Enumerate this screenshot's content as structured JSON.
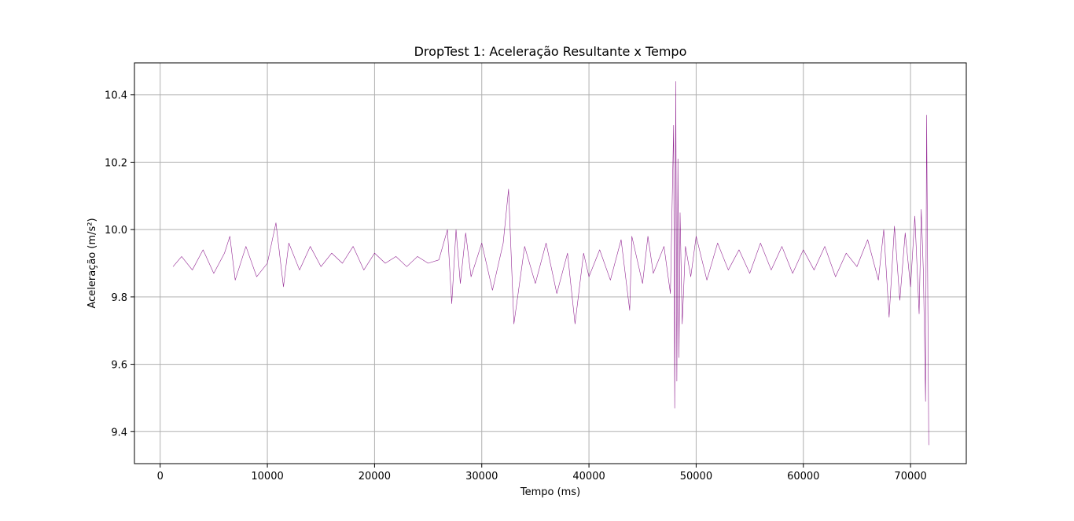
{
  "chart_data": {
    "type": "line",
    "title": "DropTest 1: Aceleração Resultante x Tempo",
    "xlabel": "Tempo (ms)",
    "ylabel": "Aceleração (m/s²)",
    "xlim": [
      -2400,
      75200
    ],
    "ylim": [
      9.305,
      10.495
    ],
    "x_ticks": [
      0,
      10000,
      20000,
      30000,
      40000,
      50000,
      60000,
      70000
    ],
    "x_tick_labels": [
      "0",
      "10000",
      "20000",
      "30000",
      "40000",
      "50000",
      "60000",
      "70000"
    ],
    "y_ticks": [
      9.4,
      9.6,
      9.8,
      10.0,
      10.2,
      10.4
    ],
    "y_tick_labels": [
      "9.4",
      "9.6",
      "9.8",
      "10.0",
      "10.2",
      "10.4"
    ],
    "grid": true,
    "legend": "none",
    "series": [
      {
        "color": "#800080",
        "x": [
          1200,
          2000,
          3000,
          4000,
          5000,
          6000,
          6500,
          7000,
          8000,
          9000,
          10000,
          10800,
          11500,
          12000,
          13000,
          14000,
          15000,
          16000,
          17000,
          18000,
          19000,
          20000,
          21000,
          22000,
          23000,
          24000,
          25000,
          26000,
          26800,
          27200,
          27600,
          28000,
          28500,
          29000,
          30000,
          31000,
          32000,
          32500,
          33000,
          34000,
          35000,
          36000,
          37000,
          38000,
          38700,
          39500,
          40000,
          41000,
          42000,
          43000,
          43800,
          44000,
          45000,
          45500,
          46000,
          47000,
          47600,
          47900,
          48000,
          48100,
          48200,
          48300,
          48400,
          48500,
          48700,
          49000,
          49500,
          50000,
          51000,
          52000,
          53000,
          54000,
          55000,
          56000,
          57000,
          58000,
          59000,
          60000,
          61000,
          62000,
          63000,
          64000,
          65000,
          66000,
          67000,
          67500,
          68000,
          68500,
          69000,
          69500,
          70000,
          70400,
          70800,
          71000,
          71200,
          71400,
          71500,
          71700
        ],
        "values": [
          9.89,
          9.92,
          9.88,
          9.94,
          9.87,
          9.93,
          9.98,
          9.85,
          9.95,
          9.86,
          9.9,
          10.02,
          9.83,
          9.96,
          9.88,
          9.95,
          9.89,
          9.93,
          9.9,
          9.95,
          9.88,
          9.93,
          9.9,
          9.92,
          9.89,
          9.92,
          9.9,
          9.91,
          10.0,
          9.78,
          10.0,
          9.84,
          9.99,
          9.86,
          9.96,
          9.82,
          9.96,
          10.12,
          9.72,
          9.95,
          9.84,
          9.96,
          9.81,
          9.93,
          9.72,
          9.93,
          9.86,
          9.94,
          9.85,
          9.97,
          9.76,
          9.98,
          9.84,
          9.98,
          9.87,
          9.95,
          9.81,
          10.31,
          9.47,
          10.44,
          9.55,
          10.21,
          9.62,
          10.05,
          9.72,
          9.95,
          9.86,
          9.98,
          9.85,
          9.96,
          9.88,
          9.94,
          9.87,
          9.96,
          9.88,
          9.95,
          9.87,
          9.94,
          9.88,
          9.95,
          9.86,
          9.93,
          9.89,
          9.97,
          9.85,
          10.0,
          9.74,
          10.01,
          9.79,
          9.99,
          9.83,
          10.04,
          9.75,
          10.06,
          9.87,
          9.49,
          10.34,
          9.36
        ]
      }
    ]
  }
}
